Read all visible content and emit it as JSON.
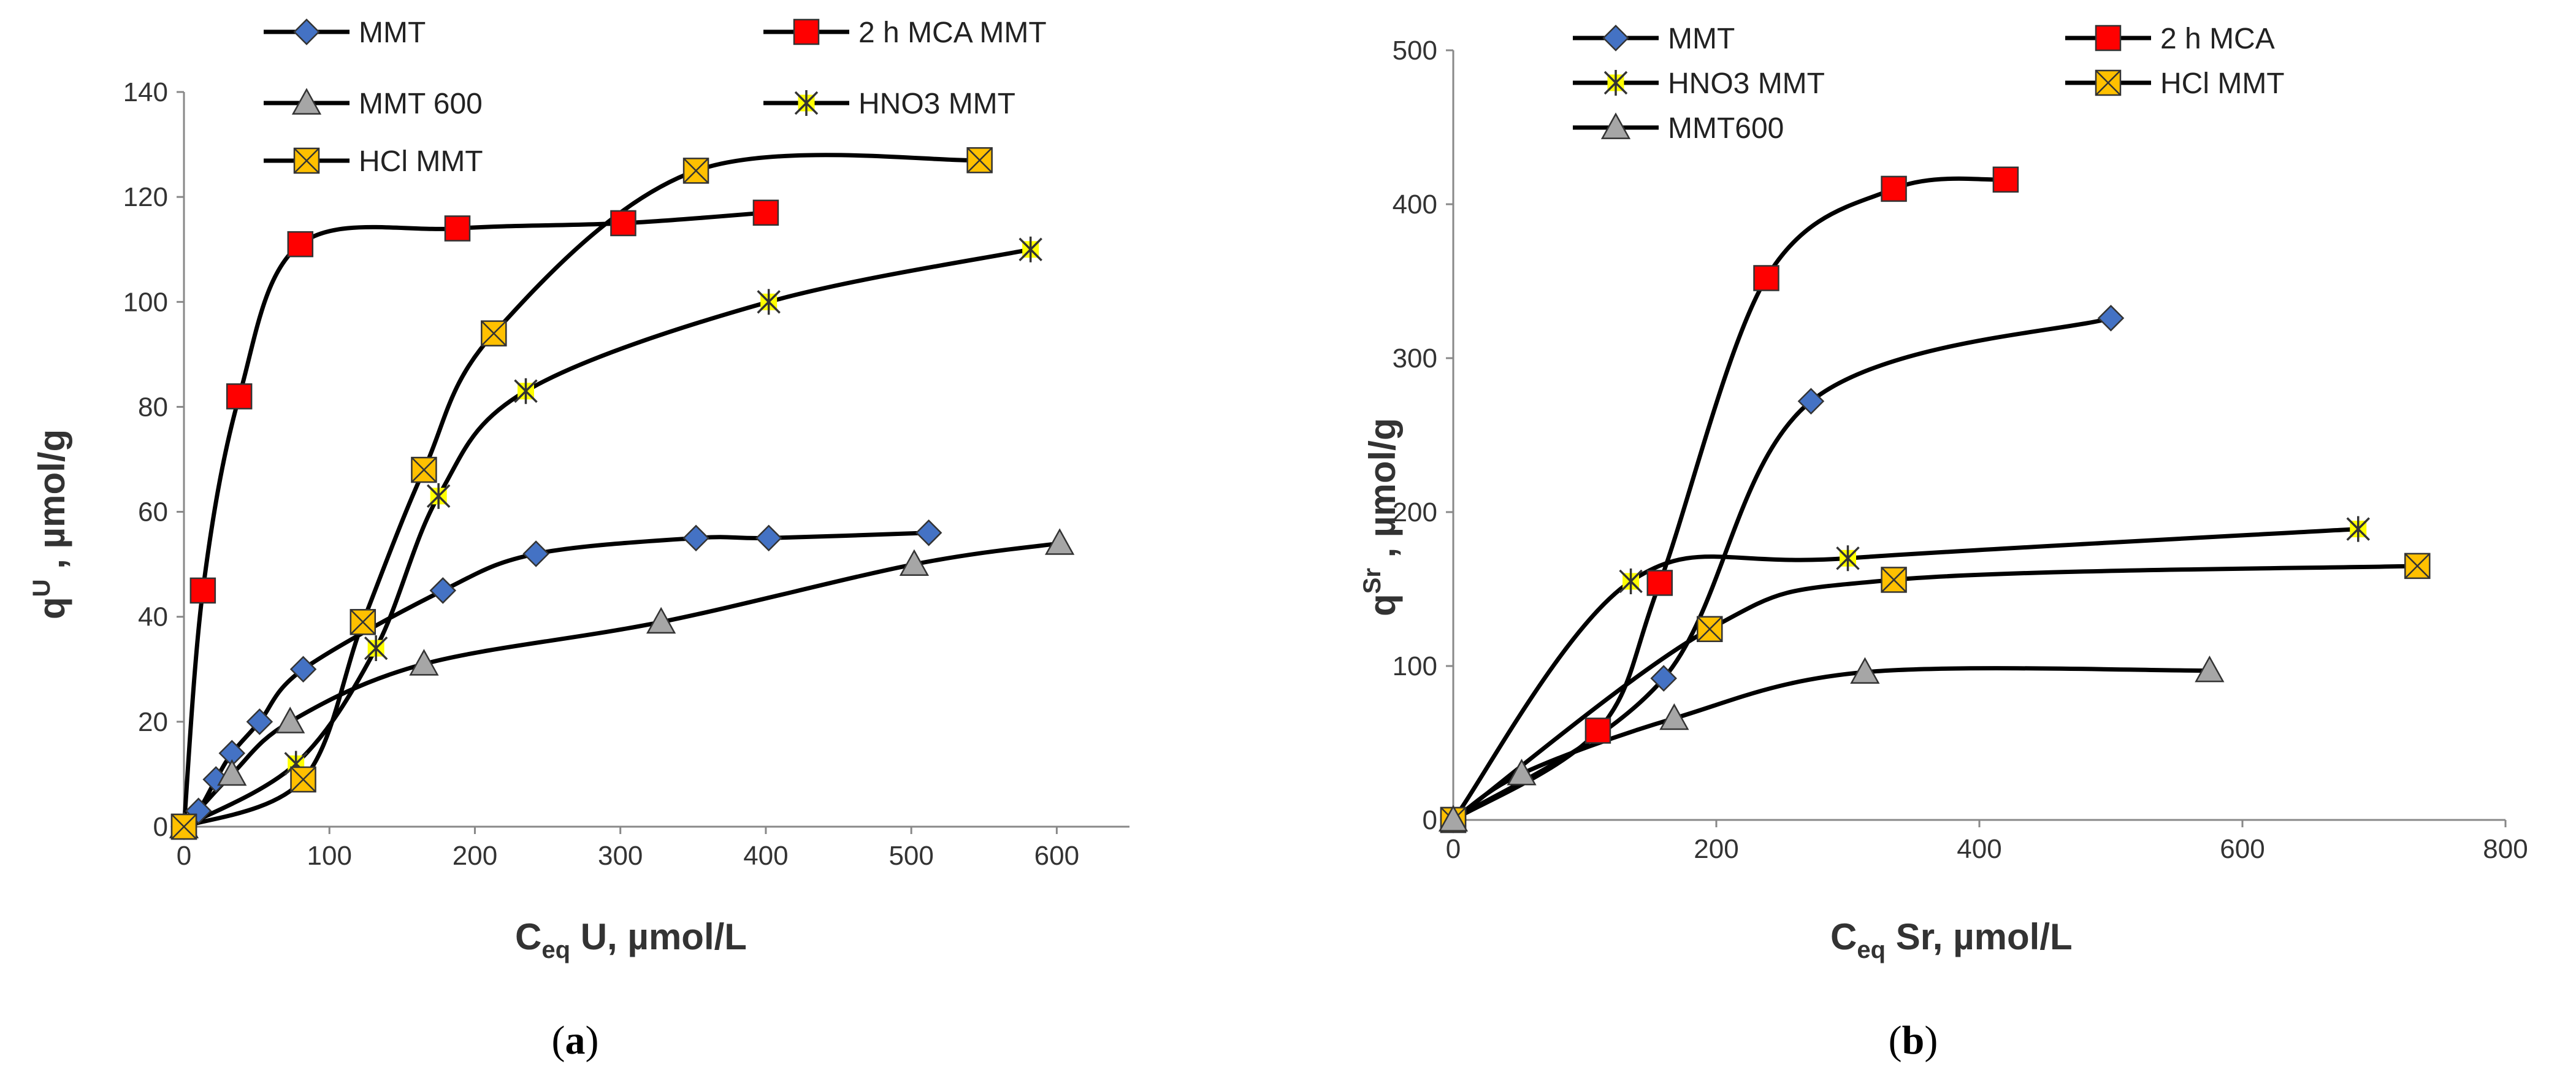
{
  "chart_data": [
    {
      "type": "line",
      "caption_open": "(",
      "caption_letter": "a",
      "caption_close": ")",
      "xlabel_main": "C",
      "xlabel_sub": "eq",
      "xlabel_rest": " U,  µmol/L",
      "ylabel_main": "q",
      "ylabel_sup": "U",
      "ylabel_rest": " ,  µmol/g",
      "xlim": [
        0,
        650
      ],
      "ylim": [
        0,
        140
      ],
      "xticks": [
        0,
        100,
        200,
        300,
        400,
        500,
        600
      ],
      "yticks": [
        0,
        20,
        40,
        60,
        80,
        100,
        120,
        140
      ],
      "series": [
        {
          "name": "MMT",
          "marker": "diamond",
          "color": "#4472C4",
          "x": [
            0,
            10,
            22,
            33,
            52,
            82,
            178,
            242,
            352,
            402,
            512
          ],
          "y": [
            0,
            3,
            9,
            14,
            20,
            30,
            45,
            52,
            55,
            55,
            56
          ]
        },
        {
          "name": "2 h MCA MMT",
          "marker": "square",
          "color": "#FF0000",
          "x": [
            0,
            13,
            38,
            80,
            188,
            302,
            400
          ],
          "y": [
            0,
            45,
            82,
            111,
            114,
            115,
            117
          ]
        },
        {
          "name": "MMT 600",
          "marker": "triangle",
          "color": "#A6A6A6",
          "x": [
            0,
            33,
            73,
            165,
            328,
            502,
            602
          ],
          "y": [
            0,
            10,
            20,
            31,
            39,
            50,
            54
          ]
        },
        {
          "name": "HNO3 MMT",
          "marker": "star",
          "color": "#FFFF00",
          "x": [
            0,
            77,
            132,
            175,
            235,
            402,
            582
          ],
          "y": [
            0,
            12,
            34,
            63,
            83,
            100,
            110
          ]
        },
        {
          "name": "HCl MMT",
          "marker": "xbox",
          "color": "#FFC000",
          "x": [
            0,
            82,
            123,
            165,
            213,
            352,
            547
          ],
          "y": [
            0,
            9,
            39,
            68,
            94,
            125,
            127
          ]
        }
      ]
    },
    {
      "type": "line",
      "caption_open": "(",
      "caption_letter": "b",
      "caption_close": ")",
      "xlabel_main": "C",
      "xlabel_sub": "eq",
      "xlabel_rest": " Sr,  µmol/L",
      "ylabel_main": "q",
      "ylabel_sup": "Sr",
      "ylabel_rest": " ,  µmol/g",
      "xlim": [
        0,
        800
      ],
      "ylim": [
        0,
        500
      ],
      "xticks": [
        0,
        200,
        400,
        600,
        800
      ],
      "yticks": [
        0,
        100,
        200,
        300,
        400,
        500
      ],
      "series": [
        {
          "name": "MMT",
          "marker": "diamond",
          "color": "#4472C4",
          "x": [
            0,
            160,
            272,
            500
          ],
          "y": [
            0,
            92,
            272,
            326
          ]
        },
        {
          "name": "2 h MCA",
          "marker": "square",
          "color": "#FF0000",
          "x": [
            0,
            110,
            157,
            238,
            335,
            420
          ],
          "y": [
            0,
            58,
            154,
            352,
            410,
            416
          ]
        },
        {
          "name": "HNO3 MMT",
          "marker": "star",
          "color": "#FFFF00",
          "x": [
            0,
            135,
            300,
            688
          ],
          "y": [
            0,
            155,
            170,
            189
          ]
        },
        {
          "name": "HCl MMT",
          "marker": "xbox",
          "color": "#FFC000",
          "x": [
            0,
            195,
            335,
            733
          ],
          "y": [
            0,
            124,
            156,
            165
          ]
        },
        {
          "name": "MMT600",
          "marker": "triangle",
          "color": "#A6A6A6",
          "x": [
            0,
            52,
            168,
            313,
            575
          ],
          "y": [
            0,
            30,
            66,
            96,
            97
          ]
        }
      ]
    }
  ]
}
